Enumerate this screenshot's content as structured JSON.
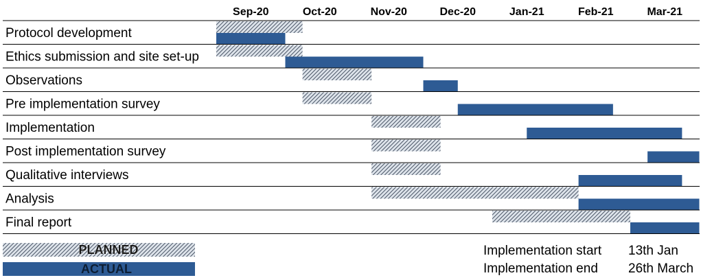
{
  "chart_data": {
    "type": "gantt",
    "months": [
      "Sep-20",
      "Oct-20",
      "Nov-20",
      "Dec-20",
      "Jan-21",
      "Feb-21",
      "Mar-21"
    ],
    "tasks": [
      {
        "name": "Protocol development",
        "planned": [
          0,
          1.25
        ],
        "actual": [
          0,
          1.0
        ]
      },
      {
        "name": "Ethics submission and site set-up",
        "planned": [
          0,
          1.25
        ],
        "actual": [
          1.0,
          3.0
        ]
      },
      {
        "name": "Observations",
        "planned": [
          1.25,
          2.25
        ],
        "actual": [
          3.0,
          3.5
        ]
      },
      {
        "name": "Pre implementation survey",
        "planned": [
          1.25,
          2.25
        ],
        "actual": [
          3.5,
          5.75
        ]
      },
      {
        "name": "Implementation",
        "planned": [
          2.25,
          3.25
        ],
        "actual": [
          4.5,
          6.75
        ]
      },
      {
        "name": "Post implementation survey",
        "planned": [
          2.25,
          3.25
        ],
        "actual": [
          6.25,
          7.0
        ]
      },
      {
        "name": "Qualitative interviews",
        "planned": [
          2.25,
          3.25
        ],
        "actual": [
          5.25,
          6.75
        ]
      },
      {
        "name": "Analysis",
        "planned": [
          2.25,
          5.25
        ],
        "actual": [
          5.25,
          7.0
        ]
      },
      {
        "name": "Final report",
        "planned": [
          4.0,
          6.0
        ],
        "actual": [
          6.0,
          7.0
        ]
      }
    ],
    "legend": {
      "planned": "PLANNED",
      "actual": "ACTUAL"
    },
    "notes": [
      {
        "label": "Implementation start",
        "value": "13th Jan"
      },
      {
        "label": "Implementation end",
        "value": "26th March"
      }
    ],
    "colors": {
      "actual": "#2e5b94",
      "planned_hatch": "#4a5566",
      "planned_bg": "#dde3ea"
    }
  }
}
